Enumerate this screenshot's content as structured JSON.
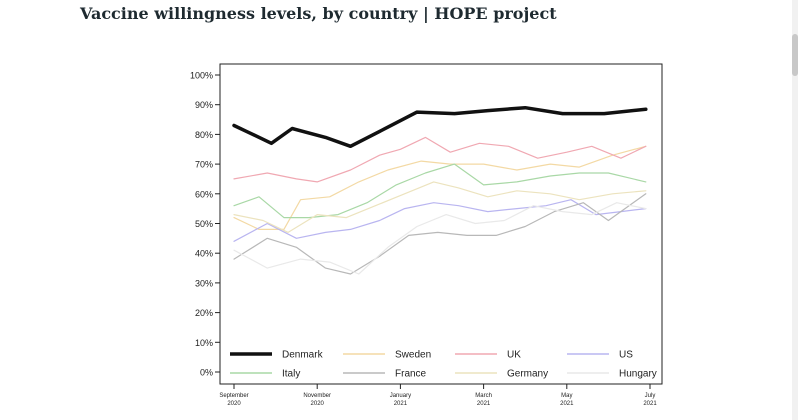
{
  "page": {
    "title": "Vaccine willingness levels, by country | HOPE project"
  },
  "chart_data": {
    "type": "line",
    "title": "",
    "xlabel": "",
    "ylabel": "",
    "ylim": [
      0,
      100
    ],
    "y_ticks": [
      "0%",
      "10%",
      "20%",
      "30%",
      "40%",
      "50%",
      "60%",
      "70%",
      "80%",
      "90%",
      "100%"
    ],
    "x_ticks": [
      {
        "month": 0,
        "line1": "September",
        "line2": "2020"
      },
      {
        "month": 2,
        "line1": "November",
        "line2": "2020"
      },
      {
        "month": 4,
        "line1": "January",
        "line2": "2021"
      },
      {
        "month": 6,
        "line1": "March",
        "line2": "2021"
      },
      {
        "month": 8,
        "line1": "May",
        "line2": "2021"
      },
      {
        "month": 10,
        "line1": "July",
        "line2": "2021"
      }
    ],
    "legend_position": "bottom-inside",
    "series": [
      {
        "name": "Denmark",
        "color": "#111111",
        "width": 3.5,
        "x": [
          0,
          0.3,
          0.9,
          1.4,
          2.2,
          2.8,
          3.5,
          4.4,
          5.3,
          6.1,
          7.0,
          7.9,
          8.9,
          9.9
        ],
        "y": [
          83,
          81,
          77,
          82,
          79,
          76,
          81,
          87.5,
          87,
          88,
          89,
          87,
          87,
          88.5
        ]
      },
      {
        "name": "Sweden",
        "color": "#f3d9a4",
        "width": 1.2,
        "x": [
          0,
          0.6,
          1.2,
          1.6,
          2.3,
          3.0,
          3.7,
          4.5,
          5.2,
          6.0,
          6.8,
          7.6,
          8.3,
          9.1,
          9.9
        ],
        "y": [
          52,
          48,
          48,
          58,
          59,
          64,
          68,
          71,
          70,
          70,
          68,
          70,
          69,
          73,
          76
        ]
      },
      {
        "name": "UK",
        "color": "#f0a8b2",
        "width": 1.2,
        "x": [
          0,
          0.8,
          1.5,
          2.0,
          2.8,
          3.5,
          4.0,
          4.6,
          5.2,
          5.9,
          6.6,
          7.3,
          8.0,
          8.6,
          9.3,
          9.9
        ],
        "y": [
          65,
          67,
          65,
          64,
          68,
          73,
          75,
          79,
          74,
          77,
          76,
          72,
          74,
          76,
          72,
          76
        ]
      },
      {
        "name": "US",
        "color": "#b9b5f0",
        "width": 1.2,
        "x": [
          0,
          0.8,
          1.5,
          2.2,
          2.8,
          3.5,
          4.1,
          4.8,
          5.4,
          6.1,
          6.8,
          7.5,
          8.1,
          8.7,
          9.3,
          9.9
        ],
        "y": [
          44,
          50,
          45,
          47,
          48,
          51,
          55,
          57,
          56,
          54,
          55,
          56,
          58,
          53,
          54,
          55
        ]
      },
      {
        "name": "Italy",
        "color": "#a9d8a6",
        "width": 1.2,
        "x": [
          0,
          0.6,
          1.2,
          1.8,
          2.5,
          3.2,
          3.9,
          4.6,
          5.3,
          6.0,
          6.8,
          7.6,
          8.3,
          9.0,
          9.9
        ],
        "y": [
          56,
          59,
          52,
          52,
          53,
          57,
          63,
          67,
          70,
          63,
          64,
          66,
          67,
          67,
          64
        ]
      },
      {
        "name": "France",
        "color": "#b8b8b8",
        "width": 1.2,
        "x": [
          0,
          0.8,
          1.5,
          2.2,
          2.8,
          3.5,
          4.2,
          4.9,
          5.6,
          6.3,
          7.0,
          7.7,
          8.4,
          9.0,
          9.9
        ],
        "y": [
          38,
          45,
          42,
          35,
          33,
          39,
          46,
          47,
          46,
          46,
          49,
          54,
          57,
          51,
          60
        ]
      },
      {
        "name": "Germany",
        "color": "#ece3be",
        "width": 1.2,
        "x": [
          0,
          0.7,
          1.3,
          2.0,
          2.7,
          3.4,
          4.1,
          4.8,
          5.4,
          6.1,
          6.8,
          7.6,
          8.3,
          9.1,
          9.9
        ],
        "y": [
          53,
          51,
          47,
          53,
          52,
          56,
          60,
          64,
          62,
          59,
          61,
          60,
          58,
          60,
          61
        ]
      },
      {
        "name": "Hungary",
        "color": "#e9e9e9",
        "width": 1.2,
        "x": [
          0,
          0.8,
          1.6,
          2.3,
          3.0,
          3.7,
          4.4,
          5.1,
          5.8,
          6.5,
          7.2,
          7.9,
          8.6,
          9.2,
          9.9
        ],
        "y": [
          41,
          35,
          38,
          37,
          33,
          42,
          49,
          53,
          50,
          51,
          56,
          54,
          53,
          57,
          55
        ]
      }
    ]
  }
}
